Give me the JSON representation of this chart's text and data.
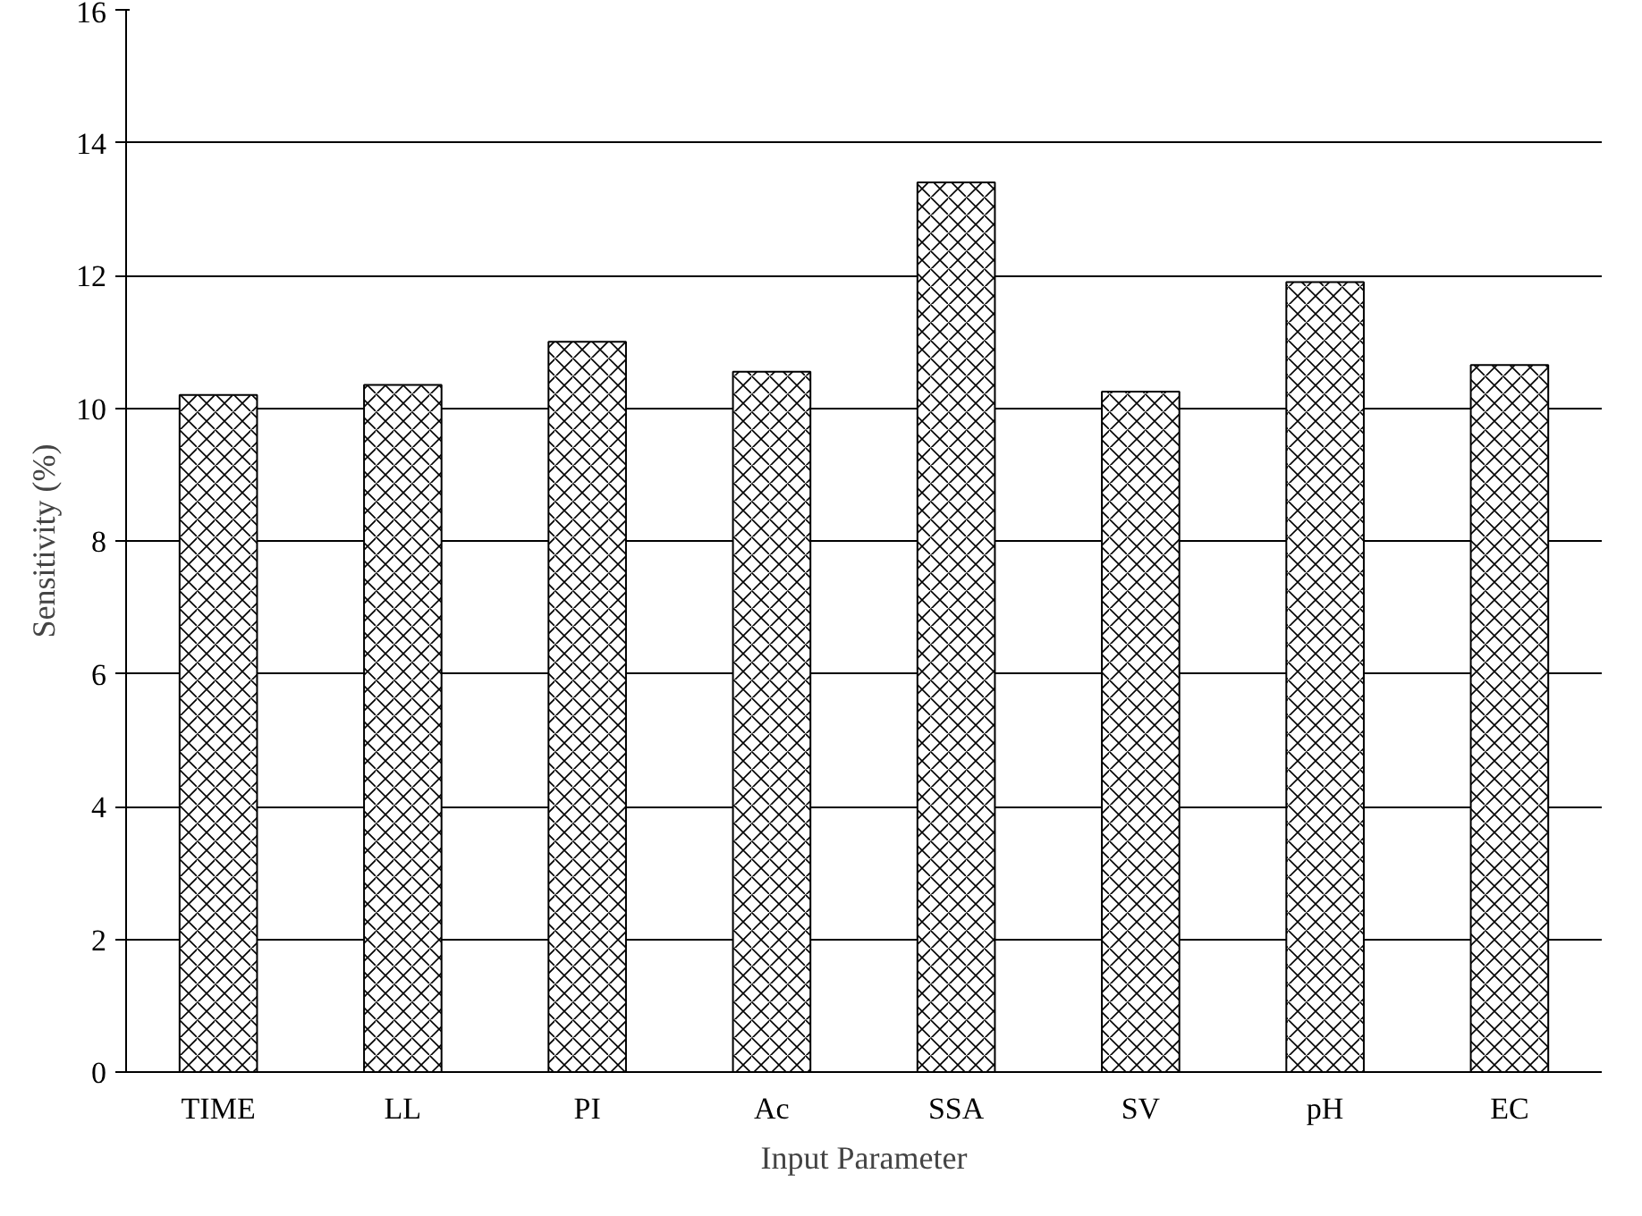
{
  "chart_data": {
    "type": "bar",
    "xlabel": "Input Parameter",
    "ylabel": "Sensitivity (%)",
    "categories": [
      "TIME",
      "LL",
      "PI",
      "Ac",
      "SSA",
      "SV",
      "pH",
      "EC"
    ],
    "values": [
      10.2,
      10.35,
      11.0,
      10.55,
      13.4,
      10.25,
      11.9,
      10.65
    ],
    "color": "#ffffff",
    "ylim": [
      0,
      16
    ],
    "yticks": [
      0,
      2,
      4,
      6,
      8,
      10,
      12,
      14,
      16
    ],
    "grid": "y"
  }
}
